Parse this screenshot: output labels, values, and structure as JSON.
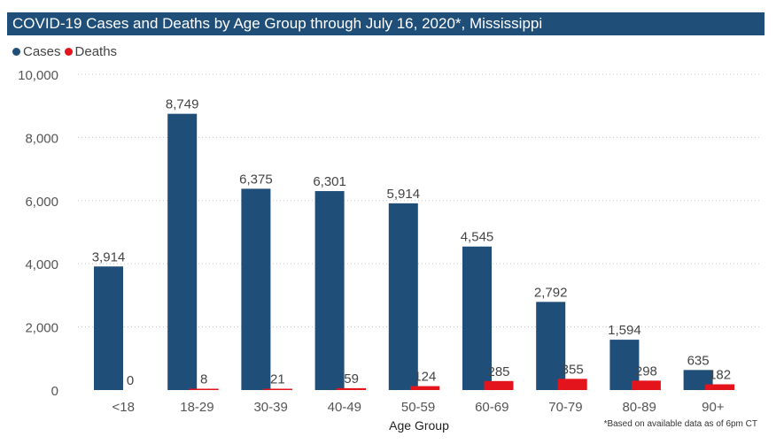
{
  "header": {
    "title": "COVID-19 Cases and Deaths by Age Group through July 16, 2020*, Mississippi"
  },
  "footnote": "*Based on available data as of 6pm CT",
  "colors": {
    "cases": "#1f4e79",
    "deaths": "#e4141c",
    "title_bar": "#1f4e79"
  },
  "chart_data": {
    "type": "bar",
    "title": "COVID-19 Cases and Deaths by Age Group through July 16, 2020*, Mississippi",
    "xlabel": "Age Group",
    "ylabel": "",
    "ylim": [
      0,
      10000
    ],
    "yticks": [
      "0",
      "2,000",
      "4,000",
      "6,000",
      "8,000",
      "10,000"
    ],
    "ytick_values": [
      0,
      2000,
      4000,
      6000,
      8000,
      10000
    ],
    "grid": true,
    "legend_position": "top-left",
    "categories": [
      "<18",
      "18-29",
      "30-39",
      "40-49",
      "50-59",
      "60-69",
      "70-79",
      "80-89",
      "90+"
    ],
    "series": [
      {
        "name": "Cases",
        "color": "#1f4e79",
        "values": [
          3914,
          8749,
          6375,
          6301,
          5914,
          4545,
          2792,
          1594,
          635
        ],
        "labels": [
          "3,914",
          "8,749",
          "6,375",
          "6,301",
          "5,914",
          "4,545",
          "2,792",
          "1,594",
          "635"
        ]
      },
      {
        "name": "Deaths",
        "color": "#e4141c",
        "values": [
          0,
          8,
          21,
          59,
          124,
          285,
          355,
          298,
          182
        ],
        "labels": [
          "0",
          "8",
          "21",
          "59",
          "124",
          "285",
          "355",
          "298",
          "182"
        ]
      }
    ]
  }
}
